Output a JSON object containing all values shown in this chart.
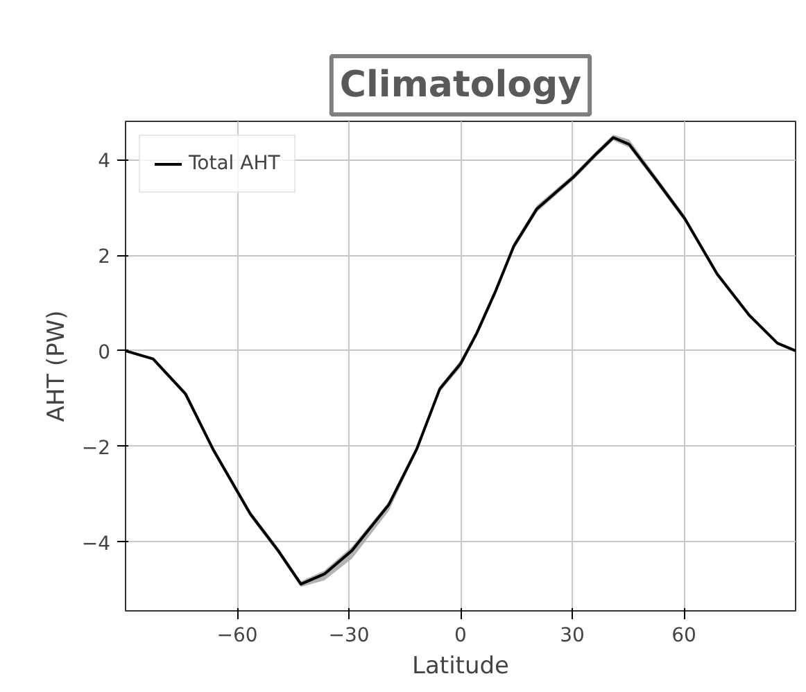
{
  "chart_data": {
    "type": "line",
    "title": "Climatology",
    "xlabel": "Latitude",
    "ylabel": "AHT (PW)",
    "xlim": [
      -90,
      90
    ],
    "ylim": [
      -5.44,
      4.8
    ],
    "xticks": [
      {
        "value": -60,
        "label": "−60"
      },
      {
        "value": -30,
        "label": "−30"
      },
      0,
      30,
      60
    ],
    "yticks": [
      {
        "value": -4,
        "label": "−4"
      },
      {
        "value": -2,
        "label": "−2"
      },
      0,
      2,
      4
    ],
    "grid": true,
    "legend": "top left",
    "line_style": "solid",
    "marker": "none",
    "series": [
      {
        "name": "Total AHT",
        "color": "#000000",
        "x": [
          -90,
          -82.6,
          -73.9,
          -66.5,
          -56.5,
          -49,
          -42.9,
          -36.6,
          -29.2,
          -19.3,
          -11.8,
          -5.6,
          0,
          4.3,
          9.3,
          14.3,
          20.5,
          30.4,
          36.6,
          41,
          45.3,
          52.8,
          60.2,
          68.9,
          77.6,
          85.1,
          90
        ],
        "values": [
          0,
          -0.17,
          -0.9,
          -2.06,
          -3.41,
          -4.18,
          -4.88,
          -4.67,
          -4.18,
          -3.22,
          -2.06,
          -0.8,
          -0.27,
          0.36,
          1.23,
          2.19,
          2.97,
          3.64,
          4.13,
          4.46,
          4.32,
          3.55,
          2.77,
          1.61,
          0.74,
          0.16,
          0
        ],
        "lower": [
          0,
          -0.2,
          -0.95,
          -2.12,
          -3.47,
          -4.24,
          -4.94,
          -4.8,
          -4.35,
          -3.35,
          -2.12,
          -0.86,
          -0.35,
          0.3,
          1.17,
          2.12,
          2.9,
          3.58,
          4.07,
          4.4,
          4.25,
          3.48,
          2.71,
          1.56,
          0.7,
          0.13,
          0
        ],
        "upper": [
          0,
          -0.14,
          -0.85,
          -2.0,
          -3.35,
          -4.12,
          -4.82,
          -4.6,
          -4.1,
          -3.16,
          -2.0,
          -0.74,
          -0.2,
          0.42,
          1.29,
          2.26,
          3.04,
          3.7,
          4.19,
          4.52,
          4.42,
          3.62,
          2.83,
          1.66,
          0.78,
          0.19,
          0
        ]
      }
    ]
  }
}
